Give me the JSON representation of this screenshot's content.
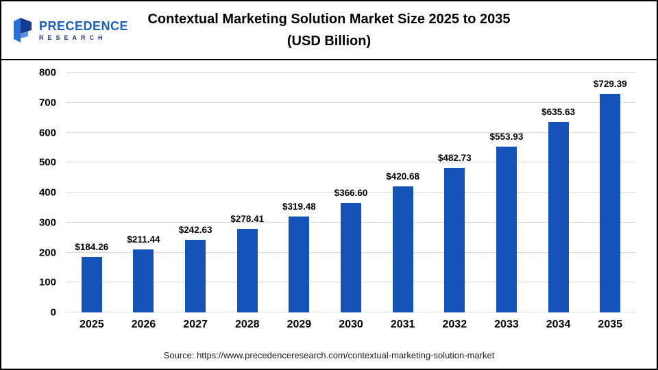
{
  "header": {
    "logo": {
      "name": "PRECEDENCE",
      "sub": "RESEARCH"
    },
    "title_line1": "Contextual Marketing Solution Market  Size 2025 to 2035",
    "title_line2": "(USD Billion)"
  },
  "chart_data": {
    "type": "bar",
    "title": "Contextual Marketing Solution Market Size 2025 to 2035 (USD Billion)",
    "categories": [
      "2025",
      "2026",
      "2027",
      "2028",
      "2029",
      "2030",
      "2031",
      "2032",
      "2033",
      "2034",
      "2035"
    ],
    "values": [
      184.26,
      211.44,
      242.63,
      278.41,
      319.48,
      366.6,
      420.68,
      482.73,
      553.93,
      635.63,
      729.39
    ],
    "value_prefix": "$",
    "xlabel": "",
    "ylabel": "",
    "ylim": [
      0,
      800
    ],
    "yticks": [
      0,
      100,
      200,
      300,
      400,
      500,
      600,
      700,
      800
    ],
    "grid": true,
    "legend": false,
    "bar_color": "#1653b8"
  },
  "footer": {
    "source": "Source: https://www.precedenceresearch.com/contextual-marketing-solution-market"
  }
}
